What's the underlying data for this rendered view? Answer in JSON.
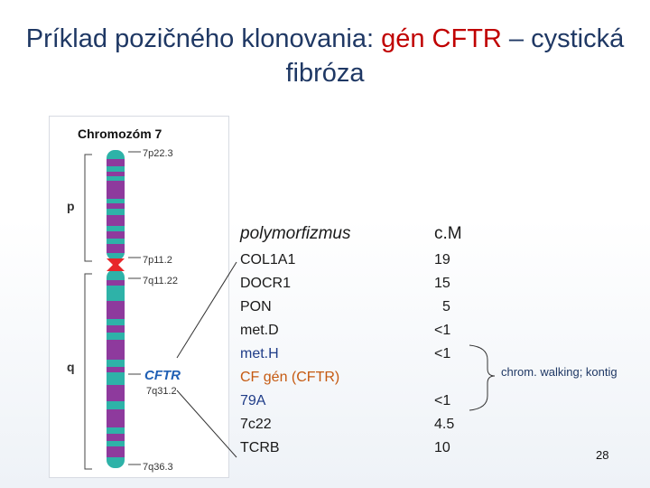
{
  "slide": {
    "title_part1": "Príklad pozičného klonovania: ",
    "title_red": "gén CFTR",
    "title_part2": " – cystická fibróza",
    "page_number": "28"
  },
  "figure": {
    "heading": "Chromozóm 7",
    "arm_p": "p",
    "arm_q": "q",
    "band_labels": [
      "7p22.3",
      "7p11.2",
      "7q11.22",
      "7q31.2",
      "7q36.3"
    ],
    "gene_label": "CFTR",
    "colors": {
      "purple": "#8e3a9d",
      "teal": "#2eb2a8",
      "centromere": "#e8262a",
      "gene": "#1f5fb4"
    }
  },
  "table": {
    "col1_header": "polymorfizmus",
    "col2_header": "c.M",
    "rows": [
      {
        "marker": "COL1A1",
        "cm": "19"
      },
      {
        "marker": "DOCR1",
        "cm": "15"
      },
      {
        "marker": "PON",
        "cm": "5"
      },
      {
        "marker": "met.D",
        "cm": "<1"
      },
      {
        "marker": "met.H",
        "cm": "<1"
      },
      {
        "marker": "CF gén (CFTR)",
        "cm": ""
      },
      {
        "marker": "79A",
        "cm": "<1"
      },
      {
        "marker": "7c22",
        "cm": "4.5"
      },
      {
        "marker": "TCRB",
        "cm": "10"
      }
    ],
    "note": "chrom. walking; kontig"
  }
}
